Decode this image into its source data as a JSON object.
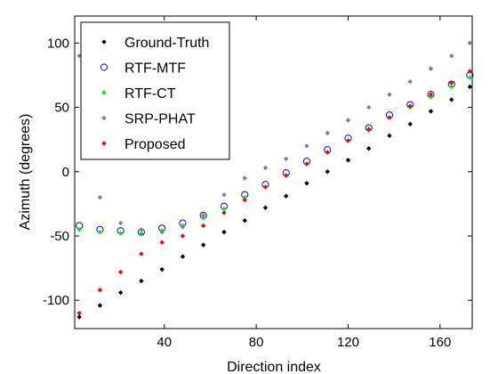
{
  "chart_data": {
    "type": "scatter",
    "title": "",
    "xlabel": "Direction index",
    "ylabel": "Azimuth (degrees)",
    "xlim": [
      1,
      174
    ],
    "ylim": [
      -122,
      121
    ],
    "xticks": [
      40,
      80,
      120,
      160
    ],
    "yticks": [
      -100,
      -50,
      0,
      50,
      100
    ],
    "grid": false,
    "legend_position": "top-left",
    "series": [
      {
        "name": "Ground-Truth",
        "marker": "dot",
        "color": "#000000",
        "x": [
          3,
          12,
          21,
          30,
          39,
          48,
          57,
          66,
          75,
          84,
          93,
          102,
          111,
          120,
          129,
          138,
          147,
          156,
          165,
          173
        ],
        "y": [
          -113,
          -104,
          -94,
          -85,
          -76,
          -66,
          -57,
          -47,
          -38,
          -28,
          -19,
          -9,
          0,
          9,
          18,
          28,
          37,
          47,
          56,
          66
        ]
      },
      {
        "name": "RTF-MTF",
        "marker": "circle",
        "color": "#0000ff",
        "x": [
          3,
          12,
          21,
          30,
          39,
          48,
          57,
          66,
          75,
          84,
          93,
          102,
          111,
          120,
          129,
          138,
          147,
          156,
          165,
          173
        ],
        "y": [
          -42,
          -45,
          -46,
          -47,
          -44,
          -40,
          -34,
          -27,
          -18,
          -10,
          -1,
          8,
          17,
          26,
          34,
          44,
          52,
          60,
          68,
          75
        ]
      },
      {
        "name": "RTF-CT",
        "marker": "dot",
        "color": "#00ee00",
        "x": [
          3,
          12,
          21,
          30,
          39,
          48,
          57,
          66,
          75,
          84,
          93,
          102,
          111,
          120,
          129,
          138,
          147,
          156,
          165,
          173
        ],
        "y": [
          -45,
          -47,
          -48,
          -48,
          -46,
          -42,
          -36,
          -29,
          -20,
          -12,
          -3,
          6,
          15,
          24,
          32,
          42,
          50,
          58,
          66,
          73
        ]
      },
      {
        "name": "SRP-PHAT",
        "marker": "dot",
        "color": "#808080",
        "x": [
          3,
          12,
          21,
          30,
          39,
          48,
          57,
          66,
          75,
          84,
          93,
          102,
          111,
          120,
          129,
          138,
          147,
          156,
          165,
          173
        ],
        "y": [
          90,
          -20,
          -40,
          -45,
          -47,
          -43,
          -34,
          -18,
          -5,
          3,
          10,
          20,
          30,
          40,
          50,
          60,
          70,
          80,
          90,
          100
        ]
      },
      {
        "name": "Proposed",
        "marker": "dot",
        "color": "#ff0000",
        "x": [
          3,
          12,
          21,
          30,
          39,
          48,
          57,
          66,
          75,
          84,
          93,
          102,
          111,
          120,
          129,
          138,
          147,
          156,
          165,
          173
        ],
        "y": [
          -110,
          -92,
          -78,
          -64,
          -55,
          -50,
          -42,
          -32,
          -22,
          -12,
          -3,
          6,
          15,
          24,
          33,
          42,
          51,
          60,
          69,
          78
        ]
      }
    ]
  }
}
